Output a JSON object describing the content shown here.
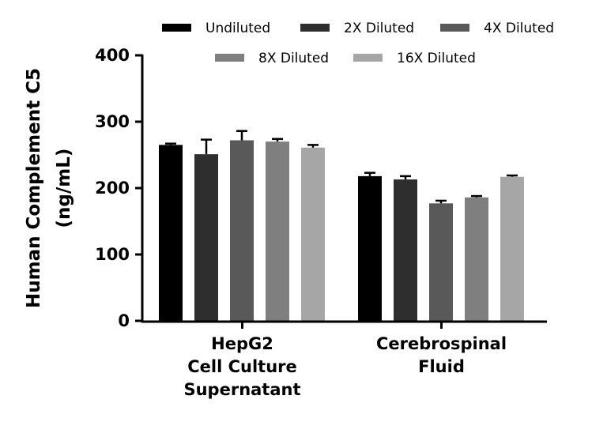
{
  "chart_data": {
    "type": "bar",
    "title": "",
    "ylabel": [
      "Human Complement C5",
      "(ng/mL)"
    ],
    "xlabel": "",
    "ylim": [
      0,
      400
    ],
    "yticks": [
      "0",
      "100",
      "200",
      "300",
      "400"
    ],
    "legend_position": "top",
    "categories": [
      [
        "HepG2",
        "Cell Culture",
        "Supernatant"
      ],
      [
        "Cerebrospinal",
        "Fluid"
      ]
    ],
    "series": [
      {
        "name": "Undiluted",
        "color": "#000000",
        "values": [
          265,
          218
        ],
        "errors": [
          2,
          5
        ]
      },
      {
        "name": "2X Diluted",
        "color": "#2e2e2e",
        "values": [
          251,
          213
        ],
        "errors": [
          22,
          5
        ]
      },
      {
        "name": "4X Diluted",
        "color": "#595959",
        "values": [
          272,
          177
        ],
        "errors": [
          14,
          4
        ]
      },
      {
        "name": "8X Diluted",
        "color": "#7f7f7f",
        "values": [
          270,
          186
        ],
        "errors": [
          4,
          2
        ]
      },
      {
        "name": "16X Diluted",
        "color": "#a6a6a6",
        "values": [
          261,
          217
        ],
        "errors": [
          4,
          2
        ]
      }
    ]
  }
}
